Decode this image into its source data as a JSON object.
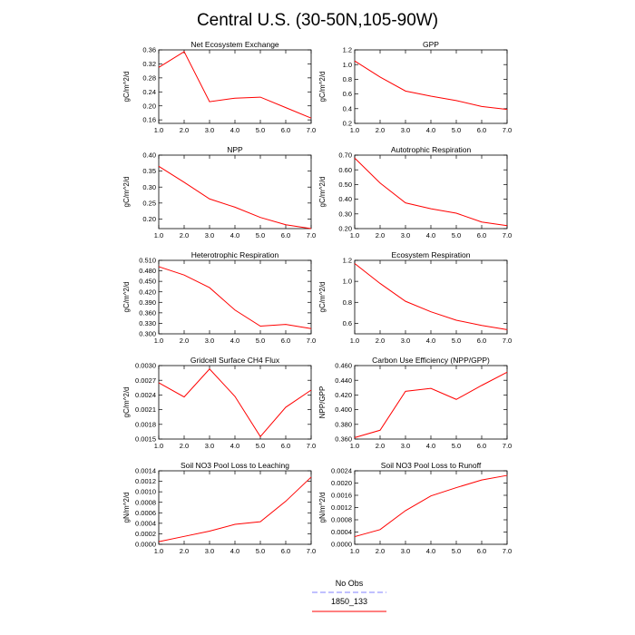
{
  "figure": {
    "title": "Central U.S. (30-50N,105-90W)"
  },
  "legend": {
    "entries": [
      {
        "label": "No Obs",
        "color": "#8080ff",
        "style": "dashed"
      },
      {
        "label": "1850_133",
        "color": "#ff0000",
        "style": "solid"
      }
    ]
  },
  "chart_data": [
    {
      "type": "line",
      "title": "Net Ecosystem Exchange",
      "ylabel": "gC/m^2/d",
      "xlim": [
        1.0,
        7.0
      ],
      "ylim": [
        0.15,
        0.36
      ],
      "xticks": [
        "1.0",
        "2.0",
        "3.0",
        "4.0",
        "5.0",
        "6.0",
        "7.0"
      ],
      "yticks": [
        "0.16",
        "0.20",
        "0.24",
        "0.28",
        "0.32",
        "0.36"
      ],
      "x": [
        1,
        2,
        3,
        4,
        5,
        6,
        7
      ],
      "series": [
        {
          "name": "1850_133",
          "color": "#ff0000",
          "values": [
            0.31,
            0.355,
            0.212,
            0.222,
            0.225,
            0.195,
            0.165
          ]
        }
      ]
    },
    {
      "type": "line",
      "title": "GPP",
      "ylabel": "gC/m^2/d",
      "xlim": [
        1.0,
        7.0
      ],
      "ylim": [
        0.2,
        1.2
      ],
      "xticks": [
        "1.0",
        "2.0",
        "3.0",
        "4.0",
        "5.0",
        "6.0",
        "7.0"
      ],
      "yticks": [
        "0.2",
        "0.4",
        "0.6",
        "0.8",
        "1.0",
        "1.2"
      ],
      "x": [
        1,
        2,
        3,
        4,
        5,
        6,
        7
      ],
      "series": [
        {
          "name": "1850_133",
          "color": "#ff0000",
          "values": [
            1.05,
            0.83,
            0.64,
            0.57,
            0.51,
            0.43,
            0.39
          ]
        }
      ]
    },
    {
      "type": "line",
      "title": "NPP",
      "ylabel": "gC/m^2/d",
      "xlim": [
        1.0,
        7.0
      ],
      "ylim": [
        0.17,
        0.4
      ],
      "xticks": [
        "1.0",
        "2.0",
        "3.0",
        "4.0",
        "5.0",
        "6.0",
        "7.0"
      ],
      "yticks": [
        "0.20",
        "0.25",
        "0.30",
        "0.35",
        "0.40"
      ],
      "x": [
        1,
        2,
        3,
        4,
        5,
        6,
        7
      ],
      "series": [
        {
          "name": "1850_133",
          "color": "#ff0000",
          "values": [
            0.365,
            0.315,
            0.263,
            0.237,
            0.205,
            0.182,
            0.17
          ]
        }
      ]
    },
    {
      "type": "line",
      "title": "Autotrophic Respiration",
      "ylabel": "gC/m^2/d",
      "xlim": [
        1.0,
        7.0
      ],
      "ylim": [
        0.2,
        0.7
      ],
      "xticks": [
        "1.0",
        "2.0",
        "3.0",
        "4.0",
        "5.0",
        "6.0",
        "7.0"
      ],
      "yticks": [
        "0.20",
        "0.30",
        "0.40",
        "0.50",
        "0.60",
        "0.70"
      ],
      "x": [
        1,
        2,
        3,
        4,
        5,
        6,
        7
      ],
      "series": [
        {
          "name": "1850_133",
          "color": "#ff0000",
          "values": [
            0.68,
            0.51,
            0.375,
            0.335,
            0.305,
            0.245,
            0.22
          ]
        }
      ]
    },
    {
      "type": "line",
      "title": "Heterotrophic Respiration",
      "ylabel": "gC/m^2/d",
      "xlim": [
        1.0,
        7.0
      ],
      "ylim": [
        0.3,
        0.51
      ],
      "xticks": [
        "1.0",
        "2.0",
        "3.0",
        "4.0",
        "5.0",
        "6.0",
        "7.0"
      ],
      "yticks": [
        "0.300",
        "0.330",
        "0.360",
        "0.390",
        "0.420",
        "0.450",
        "0.480",
        "0.510"
      ],
      "x": [
        1,
        2,
        3,
        4,
        5,
        6,
        7
      ],
      "series": [
        {
          "name": "1850_133",
          "color": "#ff0000",
          "values": [
            0.492,
            0.468,
            0.432,
            0.368,
            0.322,
            0.327,
            0.315
          ]
        }
      ]
    },
    {
      "type": "line",
      "title": "Ecosystem Respiration",
      "ylabel": "gC/m^2/d",
      "xlim": [
        1.0,
        7.0
      ],
      "ylim": [
        0.5,
        1.2
      ],
      "xticks": [
        "1.0",
        "2.0",
        "3.0",
        "4.0",
        "5.0",
        "6.0",
        "7.0"
      ],
      "yticks": [
        "0.6",
        "0.8",
        "1.0",
        "1.2"
      ],
      "x": [
        1,
        2,
        3,
        4,
        5,
        6,
        7
      ],
      "series": [
        {
          "name": "1850_133",
          "color": "#ff0000",
          "values": [
            1.17,
            0.98,
            0.81,
            0.71,
            0.63,
            0.58,
            0.54
          ]
        }
      ]
    },
    {
      "type": "line",
      "title": "Gridcell Surface CH4 Flux",
      "ylabel": "gC/m^2/d",
      "xlim": [
        1.0,
        7.0
      ],
      "ylim": [
        0.0015,
        0.003
      ],
      "xticks": [
        "1.0",
        "2.0",
        "3.0",
        "4.0",
        "5.0",
        "6.0",
        "7.0"
      ],
      "yticks": [
        "0.0015",
        "0.0018",
        "0.0021",
        "0.0024",
        "0.0027",
        "0.0030"
      ],
      "x": [
        1,
        2,
        3,
        4,
        5,
        6,
        7
      ],
      "series": [
        {
          "name": "1850_133",
          "color": "#ff0000",
          "values": [
            0.00265,
            0.00236,
            0.00293,
            0.00237,
            0.00155,
            0.00215,
            0.0025
          ]
        }
      ]
    },
    {
      "type": "line",
      "title": "Carbon Use Efficiency (NPP/GPP)",
      "ylabel": "NPP/GPP",
      "xlim": [
        1.0,
        7.0
      ],
      "ylim": [
        0.36,
        0.46
      ],
      "xticks": [
        "1.0",
        "2.0",
        "3.0",
        "4.0",
        "5.0",
        "6.0",
        "7.0"
      ],
      "yticks": [
        "0.360",
        "0.380",
        "0.400",
        "0.420",
        "0.440",
        "0.460"
      ],
      "x": [
        1,
        2,
        3,
        4,
        5,
        6,
        7
      ],
      "series": [
        {
          "name": "1850_133",
          "color": "#ff0000",
          "values": [
            0.362,
            0.372,
            0.425,
            0.429,
            0.414,
            0.433,
            0.451
          ]
        }
      ]
    },
    {
      "type": "line",
      "title": "Soil NO3 Pool Loss to Leaching",
      "ylabel": "gN/m^2/d",
      "xlim": [
        1.0,
        7.0
      ],
      "ylim": [
        0.0,
        0.0014
      ],
      "xticks": [
        "1.0",
        "2.0",
        "3.0",
        "4.0",
        "5.0",
        "6.0",
        "7.0"
      ],
      "yticks": [
        "0.0000",
        "0.0002",
        "0.0004",
        "0.0006",
        "0.0008",
        "0.0010",
        "0.0012",
        "0.0014"
      ],
      "x": [
        1,
        2,
        3,
        4,
        5,
        6,
        7
      ],
      "series": [
        {
          "name": "1850_133",
          "color": "#ff0000",
          "values": [
            5e-05,
            0.00015,
            0.00025,
            0.00038,
            0.00043,
            0.00082,
            0.00128
          ]
        }
      ]
    },
    {
      "type": "line",
      "title": "Soil NO3 Pool Loss to Runoff",
      "ylabel": "gN/m^2/d",
      "xlim": [
        1.0,
        7.0
      ],
      "ylim": [
        0.0,
        0.0024
      ],
      "xticks": [
        "1.0",
        "2.0",
        "3.0",
        "4.0",
        "5.0",
        "6.0",
        "7.0"
      ],
      "yticks": [
        "0.0000",
        "0.0004",
        "0.0008",
        "0.0012",
        "0.0016",
        "0.0020",
        "0.0024"
      ],
      "x": [
        1,
        2,
        3,
        4,
        5,
        6,
        7
      ],
      "series": [
        {
          "name": "1850_133",
          "color": "#ff0000",
          "values": [
            0.00025,
            0.00048,
            0.0011,
            0.00158,
            0.00185,
            0.0021,
            0.00225
          ]
        }
      ]
    }
  ]
}
